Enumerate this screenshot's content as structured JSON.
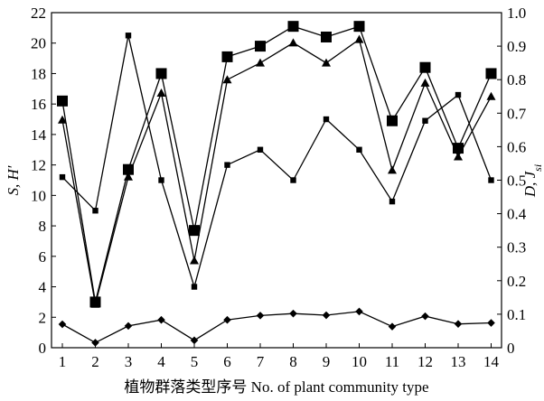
{
  "chart_data": {
    "type": "line",
    "xlabel": "植物群落类型序号 No. of plant community type",
    "ylabel_left": "S, H′",
    "ylabel_right": "D, Jsi",
    "x": [
      1,
      2,
      3,
      4,
      5,
      6,
      7,
      8,
      9,
      10,
      11,
      12,
      13,
      14
    ],
    "left_axis": {
      "min": 0,
      "max": 22,
      "ticks": [
        0,
        2,
        4,
        6,
        8,
        10,
        12,
        14,
        16,
        18,
        20,
        22
      ]
    },
    "right_axis": {
      "min": 0,
      "max": 1.0,
      "ticks": [
        "0",
        "0.1",
        "0.2",
        "0.3",
        "0.4",
        "0.5",
        "0.6",
        "0.7",
        "0.8",
        "0.9",
        "1.0"
      ]
    },
    "x_ticks": [
      "1",
      "2",
      "3",
      "4",
      "5",
      "6",
      "7",
      "8",
      "9",
      "10",
      "11",
      "12",
      "13",
      "14"
    ],
    "series": [
      {
        "marker": "small-square",
        "axis": "left",
        "values": [
          11.2,
          9.0,
          20.5,
          11.0,
          4.0,
          12.0,
          13.0,
          11.0,
          15.0,
          13.0,
          9.6,
          14.9,
          16.6,
          11.0
        ]
      },
      {
        "marker": "large-square",
        "axis": "left",
        "values": [
          16.2,
          3.0,
          11.7,
          18.0,
          7.7,
          19.1,
          19.8,
          21.1,
          20.4,
          21.1,
          14.9,
          18.4,
          13.1,
          18.0
        ]
      },
      {
        "marker": "triangle",
        "axis": "right",
        "values": [
          0.68,
          0.13,
          0.51,
          0.76,
          0.26,
          0.8,
          0.85,
          0.91,
          0.85,
          0.92,
          0.53,
          0.79,
          0.57,
          0.75
        ]
      },
      {
        "marker": "diamond",
        "axis": "right",
        "values": [
          0.07,
          0.015,
          0.065,
          0.083,
          0.022,
          0.083,
          0.096,
          0.102,
          0.097,
          0.108,
          0.063,
          0.094,
          0.071,
          0.074
        ]
      }
    ]
  }
}
